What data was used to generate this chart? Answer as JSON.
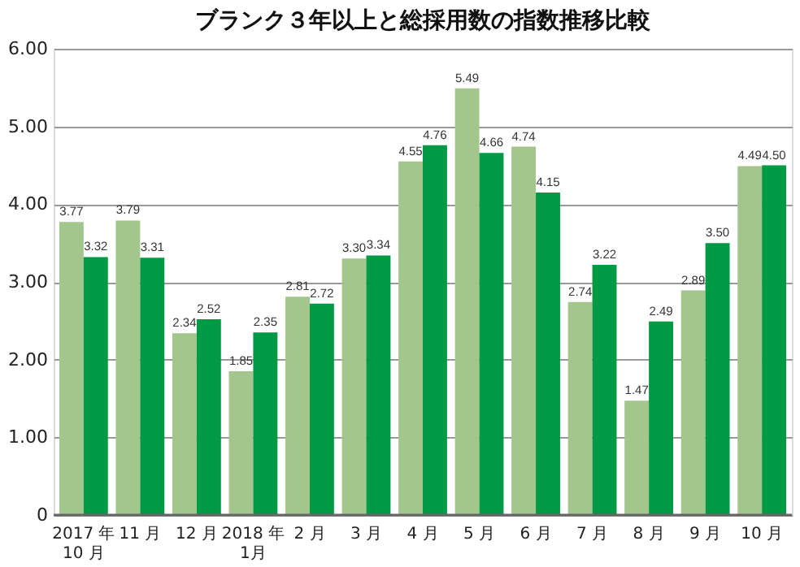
{
  "chart_data": {
    "type": "bar",
    "title": "ブランク３年以上と総採用数の指数推移比較",
    "categories": [
      "2017 年\n10 月",
      "11 月",
      "12 月",
      "2018 年\n1月",
      "2 月",
      "3 月",
      "4 月",
      "5 月",
      "6 月",
      "7 月",
      "8 月",
      "9 月",
      "10 月"
    ],
    "series": [
      {
        "color": "#a3c68c",
        "values": [
          3.77,
          3.79,
          2.34,
          1.85,
          2.81,
          3.3,
          4.55,
          5.49,
          4.74,
          2.74,
          1.47,
          2.89,
          4.49
        ],
        "value_labels": [
          "3.77",
          "3.79",
          "2.34",
          "1.85",
          "2.81",
          "3.30",
          "4.55",
          "5.49",
          "4.74",
          "2.74",
          "1.47",
          "2.89",
          "4.49"
        ]
      },
      {
        "color": "#009944",
        "values": [
          3.32,
          3.31,
          2.52,
          2.35,
          2.72,
          3.34,
          4.76,
          4.66,
          4.15,
          3.22,
          2.49,
          3.5,
          4.5
        ],
        "value_labels": [
          "3.32",
          "3.31",
          "2.52",
          "2.35",
          "2.72",
          "3.34",
          "4.76",
          "4.66",
          "4.15",
          "3.22",
          "2.49",
          "3.50",
          "4.50"
        ]
      }
    ],
    "ylim": [
      0,
      6
    ],
    "yticks": [
      0,
      {
        "value": 1,
        "label": "1.00"
      },
      {
        "value": 2,
        "label": "2.00"
      },
      {
        "value": 3,
        "label": "3.00"
      },
      {
        "value": 4,
        "label": "4.00"
      },
      {
        "value": 5,
        "label": "5.00"
      },
      {
        "value": 6,
        "label": "6.00"
      }
    ],
    "grid": "y",
    "legend": false
  }
}
